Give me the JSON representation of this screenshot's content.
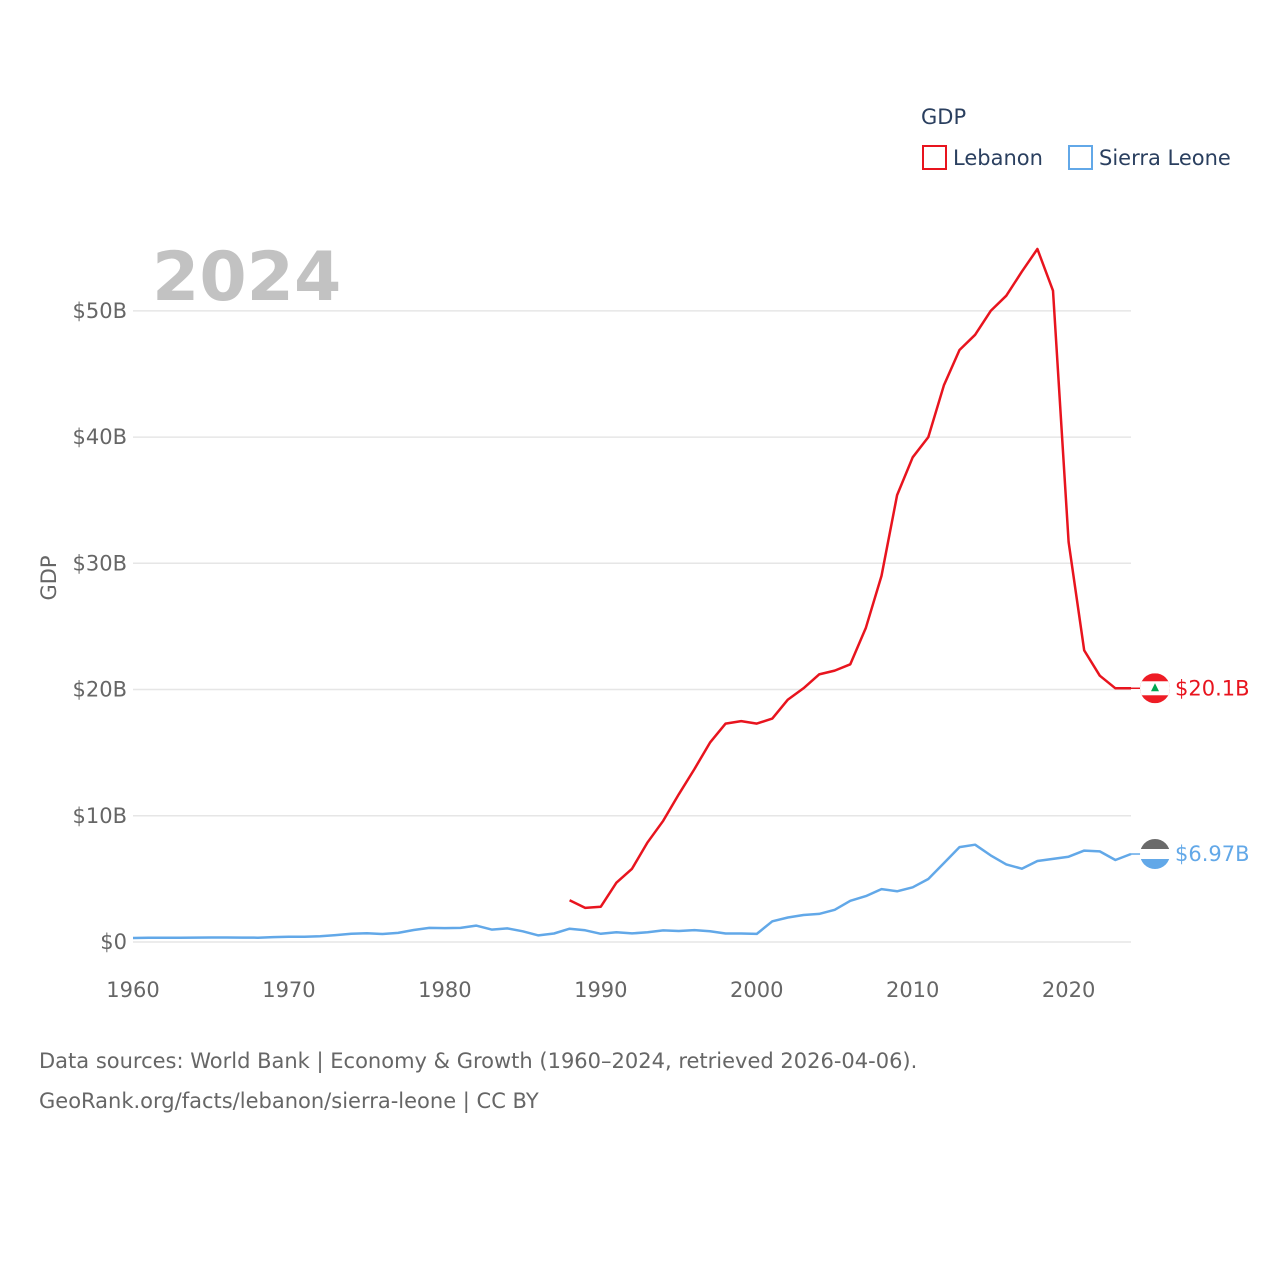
{
  "legend": {
    "title": "GDP"
  },
  "year_label": "2024",
  "source": {
    "line1": "Data sources: World Bank | Economy & Growth (1960–2024, retrieved 2026-04-06).",
    "line2": "GeoRank.org/facts/lebanon/sierra-leone | CC BY"
  },
  "chart_data": {
    "type": "line",
    "title": "",
    "xlabel": "",
    "ylabel": "GDP",
    "xlim": [
      1960,
      2024
    ],
    "ylim": [
      0,
      55
    ],
    "x_ticks": [
      1960,
      1970,
      1980,
      1990,
      2000,
      2010,
      2020
    ],
    "y_ticks": [
      0,
      10,
      20,
      30,
      40,
      50
    ],
    "y_tick_labels": [
      "$0",
      "$10B",
      "$20B",
      "$30B",
      "$40B",
      "$50B"
    ],
    "units": "billions USD",
    "series": [
      {
        "name": "Lebanon",
        "color": "#e8141e",
        "end_label": "$20.1B",
        "points": [
          [
            1988,
            3.3
          ],
          [
            1989,
            2.7
          ],
          [
            1990,
            2.8
          ],
          [
            1991,
            4.7
          ],
          [
            1992,
            5.8
          ],
          [
            1993,
            7.9
          ],
          [
            1994,
            9.6
          ],
          [
            1995,
            11.7
          ],
          [
            1996,
            13.7
          ],
          [
            1997,
            15.8
          ],
          [
            1998,
            17.3
          ],
          [
            1999,
            17.5
          ],
          [
            2000,
            17.3
          ],
          [
            2001,
            17.7
          ],
          [
            2002,
            19.2
          ],
          [
            2003,
            20.1
          ],
          [
            2004,
            21.2
          ],
          [
            2005,
            21.5
          ],
          [
            2006,
            22.0
          ],
          [
            2007,
            24.9
          ],
          [
            2008,
            29.0
          ],
          [
            2009,
            35.4
          ],
          [
            2010,
            38.4
          ],
          [
            2011,
            40.0
          ],
          [
            2012,
            44.1
          ],
          [
            2013,
            46.9
          ],
          [
            2014,
            48.1
          ],
          [
            2015,
            50.0
          ],
          [
            2016,
            51.2
          ],
          [
            2017,
            53.1
          ],
          [
            2018,
            54.9
          ],
          [
            2019,
            51.6
          ],
          [
            2020,
            31.7
          ],
          [
            2021,
            23.1
          ],
          [
            2022,
            21.1
          ],
          [
            2023,
            20.1
          ],
          [
            2024,
            20.1
          ]
        ]
      },
      {
        "name": "Sierra Leone",
        "color": "#62a8e8",
        "end_label": "$6.97B",
        "points": [
          [
            1960,
            0.32
          ],
          [
            1961,
            0.33
          ],
          [
            1962,
            0.34
          ],
          [
            1963,
            0.34
          ],
          [
            1964,
            0.35
          ],
          [
            1965,
            0.36
          ],
          [
            1966,
            0.36
          ],
          [
            1967,
            0.35
          ],
          [
            1968,
            0.34
          ],
          [
            1969,
            0.39
          ],
          [
            1970,
            0.42
          ],
          [
            1971,
            0.42
          ],
          [
            1972,
            0.46
          ],
          [
            1973,
            0.55
          ],
          [
            1974,
            0.65
          ],
          [
            1975,
            0.7
          ],
          [
            1976,
            0.63
          ],
          [
            1977,
            0.72
          ],
          [
            1978,
            0.95
          ],
          [
            1979,
            1.12
          ],
          [
            1980,
            1.1
          ],
          [
            1981,
            1.12
          ],
          [
            1982,
            1.3
          ],
          [
            1983,
            0.98
          ],
          [
            1984,
            1.08
          ],
          [
            1985,
            0.85
          ],
          [
            1986,
            0.52
          ],
          [
            1987,
            0.67
          ],
          [
            1988,
            1.05
          ],
          [
            1989,
            0.93
          ],
          [
            1990,
            0.65
          ],
          [
            1991,
            0.78
          ],
          [
            1992,
            0.68
          ],
          [
            1993,
            0.77
          ],
          [
            1994,
            0.92
          ],
          [
            1995,
            0.87
          ],
          [
            1996,
            0.94
          ],
          [
            1997,
            0.85
          ],
          [
            1998,
            0.67
          ],
          [
            1999,
            0.67
          ],
          [
            2000,
            0.64
          ],
          [
            2001,
            1.64
          ],
          [
            2002,
            1.94
          ],
          [
            2003,
            2.14
          ],
          [
            2004,
            2.23
          ],
          [
            2005,
            2.55
          ],
          [
            2006,
            3.26
          ],
          [
            2007,
            3.64
          ],
          [
            2008,
            4.19
          ],
          [
            2009,
            4.02
          ],
          [
            2010,
            4.33
          ],
          [
            2011,
            4.99
          ],
          [
            2012,
            6.25
          ],
          [
            2013,
            7.52
          ],
          [
            2014,
            7.71
          ],
          [
            2015,
            6.86
          ],
          [
            2016,
            6.15
          ],
          [
            2017,
            5.81
          ],
          [
            2018,
            6.42
          ],
          [
            2019,
            6.58
          ],
          [
            2020,
            6.76
          ],
          [
            2021,
            7.24
          ],
          [
            2022,
            7.18
          ],
          [
            2023,
            6.5
          ],
          [
            2024,
            6.97
          ]
        ]
      }
    ]
  }
}
